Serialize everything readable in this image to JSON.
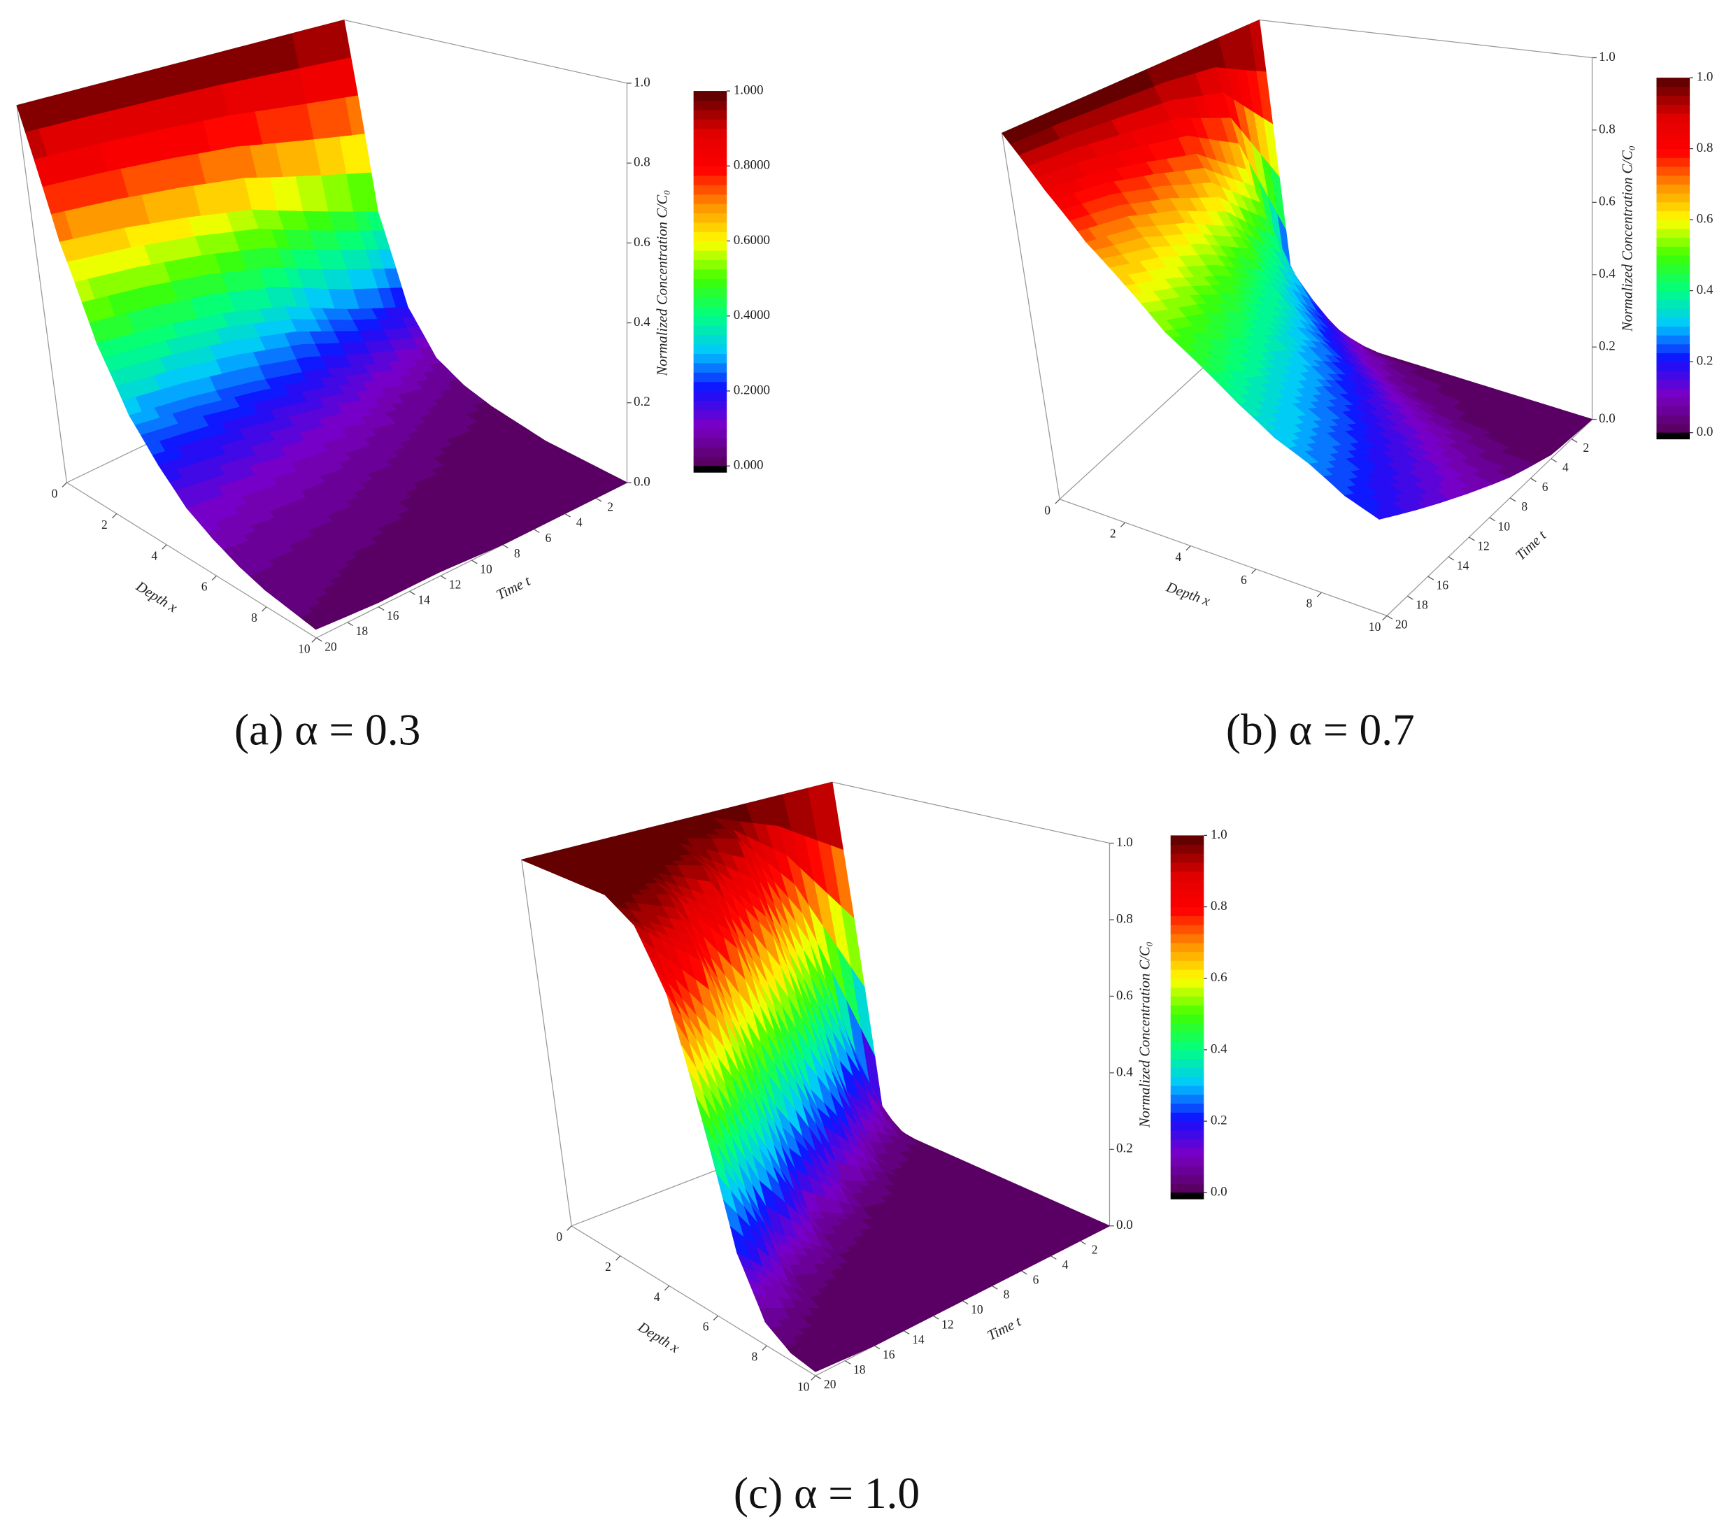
{
  "chart_data": [
    {
      "type": "surface",
      "caption": "(a) α = 0.3",
      "xlabel": "Depth x",
      "tlabel": "Time t",
      "zlabel": "Normalized Concentration C/C₀",
      "x": [
        0,
        1,
        2,
        3,
        4,
        5,
        6,
        7,
        8,
        9,
        10
      ],
      "t": [
        0,
        4,
        8,
        12,
        16,
        20
      ],
      "z": [
        [
          1,
          1,
          1,
          1,
          1,
          1
        ],
        [
          0.44,
          0.51,
          0.58,
          0.62,
          0.65,
          0.67
        ],
        [
          0.19,
          0.26,
          0.34,
          0.39,
          0.42,
          0.44
        ],
        [
          0.08,
          0.14,
          0.2,
          0.24,
          0.27,
          0.29
        ],
        [
          0.04,
          0.07,
          0.12,
          0.15,
          0.18,
          0.2
        ],
        [
          0.02,
          0.04,
          0.07,
          0.09,
          0.11,
          0.13
        ],
        [
          0.01,
          0.02,
          0.04,
          0.06,
          0.07,
          0.09
        ],
        [
          0,
          0.01,
          0.02,
          0.04,
          0.05,
          0.06
        ],
        [
          0,
          0.01,
          0.01,
          0.02,
          0.03,
          0.04
        ],
        [
          0,
          0,
          0.01,
          0.01,
          0.02,
          0.03
        ],
        [
          0,
          0,
          0,
          0.01,
          0.01,
          0.02
        ]
      ],
      "xlim": [
        0,
        10
      ],
      "tlim": [
        0,
        20
      ],
      "zlim": [
        0,
        1
      ],
      "xticks": [
        0,
        2,
        4,
        6,
        8,
        10
      ],
      "tticks": [
        2,
        4,
        6,
        8,
        10,
        12,
        14,
        16,
        18,
        20
      ],
      "zticks": [
        {
          "value": 0,
          "label": "0.0"
        },
        0.2,
        0.4,
        0.6,
        0.8,
        {
          "value": 1,
          "label": "1.0"
        }
      ],
      "colorbar_ticks": [
        {
          "value": 0,
          "label": "0.000"
        },
        {
          "value": 0.2,
          "label": "0.2000"
        },
        {
          "value": 0.4,
          "label": "0.4000"
        },
        {
          "value": 0.6,
          "label": "0.6000"
        },
        {
          "value": 0.8,
          "label": "0.8000"
        },
        {
          "value": 1,
          "label": "1.000"
        }
      ],
      "colorscale": [
        "#5a0064",
        "#7a00c8",
        "#1010ff",
        "#00c8ff",
        "#00ff80",
        "#40ff00",
        "#ffff00",
        "#ff9000",
        "#ff0000",
        "#e00000",
        "#640000"
      ]
    },
    {
      "type": "surface",
      "caption": "(b) α = 0.7",
      "xlabel": "Depth x",
      "tlabel": "Time t",
      "zlabel": "Normalized Concentration C/C₀",
      "x": [
        0,
        1,
        2,
        3,
        4,
        5,
        6,
        7,
        8,
        9,
        10
      ],
      "t": [
        0,
        4,
        8,
        12,
        16,
        20
      ],
      "z": [
        [
          1,
          1,
          1,
          1,
          1,
          1
        ],
        [
          0.14,
          0.61,
          0.74,
          0.79,
          0.83,
          0.85
        ],
        [
          0.02,
          0.37,
          0.54,
          0.63,
          0.69,
          0.72
        ],
        [
          0,
          0.22,
          0.4,
          0.5,
          0.57,
          0.62
        ],
        [
          0,
          0.14,
          0.29,
          0.4,
          0.47,
          0.52
        ],
        [
          0,
          0.08,
          0.22,
          0.32,
          0.39,
          0.45
        ],
        [
          0,
          0.05,
          0.16,
          0.25,
          0.32,
          0.38
        ],
        [
          0,
          0.03,
          0.12,
          0.2,
          0.27,
          0.32
        ],
        [
          0,
          0.02,
          0.09,
          0.16,
          0.22,
          0.28
        ],
        [
          0,
          0.01,
          0.06,
          0.13,
          0.18,
          0.23
        ],
        [
          0,
          0.01,
          0.05,
          0.1,
          0.15,
          0.2
        ]
      ],
      "xlim": [
        0,
        10
      ],
      "tlim": [
        0,
        20
      ],
      "zlim": [
        0,
        1
      ],
      "xticks": [
        0,
        2,
        4,
        6,
        8,
        10
      ],
      "tticks": [
        2,
        4,
        6,
        8,
        10,
        12,
        14,
        16,
        18,
        20
      ],
      "zticks": [
        {
          "value": 0,
          "label": "0.0"
        },
        0.2,
        0.4,
        0.6,
        0.8,
        {
          "value": 1,
          "label": "1.0"
        }
      ],
      "colorbar_ticks": [
        {
          "value": 0,
          "label": "0.0"
        },
        0.2,
        0.4,
        0.6,
        0.8,
        {
          "value": 1,
          "label": "1.0"
        }
      ],
      "colorscale": [
        "#5a0064",
        "#7a00c8",
        "#1010ff",
        "#00c8ff",
        "#00ff80",
        "#40ff00",
        "#ffff00",
        "#ff9000",
        "#ff0000",
        "#e00000",
        "#640000"
      ]
    },
    {
      "type": "surface",
      "caption": "(c) α = 1.0",
      "xlabel": "Depth x",
      "tlabel": "Time t",
      "zlabel": "Normalized Concentration C/C₀",
      "x": [
        0,
        1,
        2,
        3,
        4,
        5,
        6,
        7,
        8,
        9,
        10
      ],
      "t": [
        0,
        4,
        8,
        12,
        16,
        20
      ],
      "z": [
        [
          1,
          1,
          1,
          1,
          1,
          1
        ],
        [
          0,
          0.6,
          0.95,
          1,
          1,
          1
        ],
        [
          0,
          0.2,
          0.7,
          0.95,
          1,
          1
        ],
        [
          0,
          0.05,
          0.3,
          0.75,
          0.95,
          1
        ],
        [
          0,
          0.01,
          0.08,
          0.35,
          0.8,
          0.95
        ],
        [
          0,
          0,
          0.02,
          0.1,
          0.45,
          0.8
        ],
        [
          0,
          0,
          0,
          0.03,
          0.15,
          0.5
        ],
        [
          0,
          0,
          0,
          0.01,
          0.04,
          0.2
        ],
        [
          0,
          0,
          0,
          0,
          0.01,
          0.06
        ],
        [
          0,
          0,
          0,
          0,
          0,
          0.02
        ],
        [
          0,
          0,
          0,
          0,
          0,
          0.01
        ]
      ],
      "xlim": [
        0,
        10
      ],
      "tlim": [
        0,
        20
      ],
      "zlim": [
        0,
        1
      ],
      "xticks": [
        0,
        2,
        4,
        6,
        8,
        10
      ],
      "tticks": [
        2,
        4,
        6,
        8,
        10,
        12,
        14,
        16,
        18,
        20
      ],
      "zticks": [
        {
          "value": 0,
          "label": "0.0"
        },
        0.2,
        0.4,
        0.6,
        0.8,
        {
          "value": 1,
          "label": "1.0"
        }
      ],
      "colorbar_ticks": [
        {
          "value": 0,
          "label": "0.0"
        },
        0.2,
        0.4,
        0.6,
        0.8,
        {
          "value": 1,
          "label": "1.0"
        }
      ],
      "colorscale": [
        "#5a0064",
        "#7a00c8",
        "#1010ff",
        "#00c8ff",
        "#00ff80",
        "#40ff00",
        "#ffff00",
        "#ff9000",
        "#ff0000",
        "#e00000",
        "#640000"
      ]
    }
  ]
}
